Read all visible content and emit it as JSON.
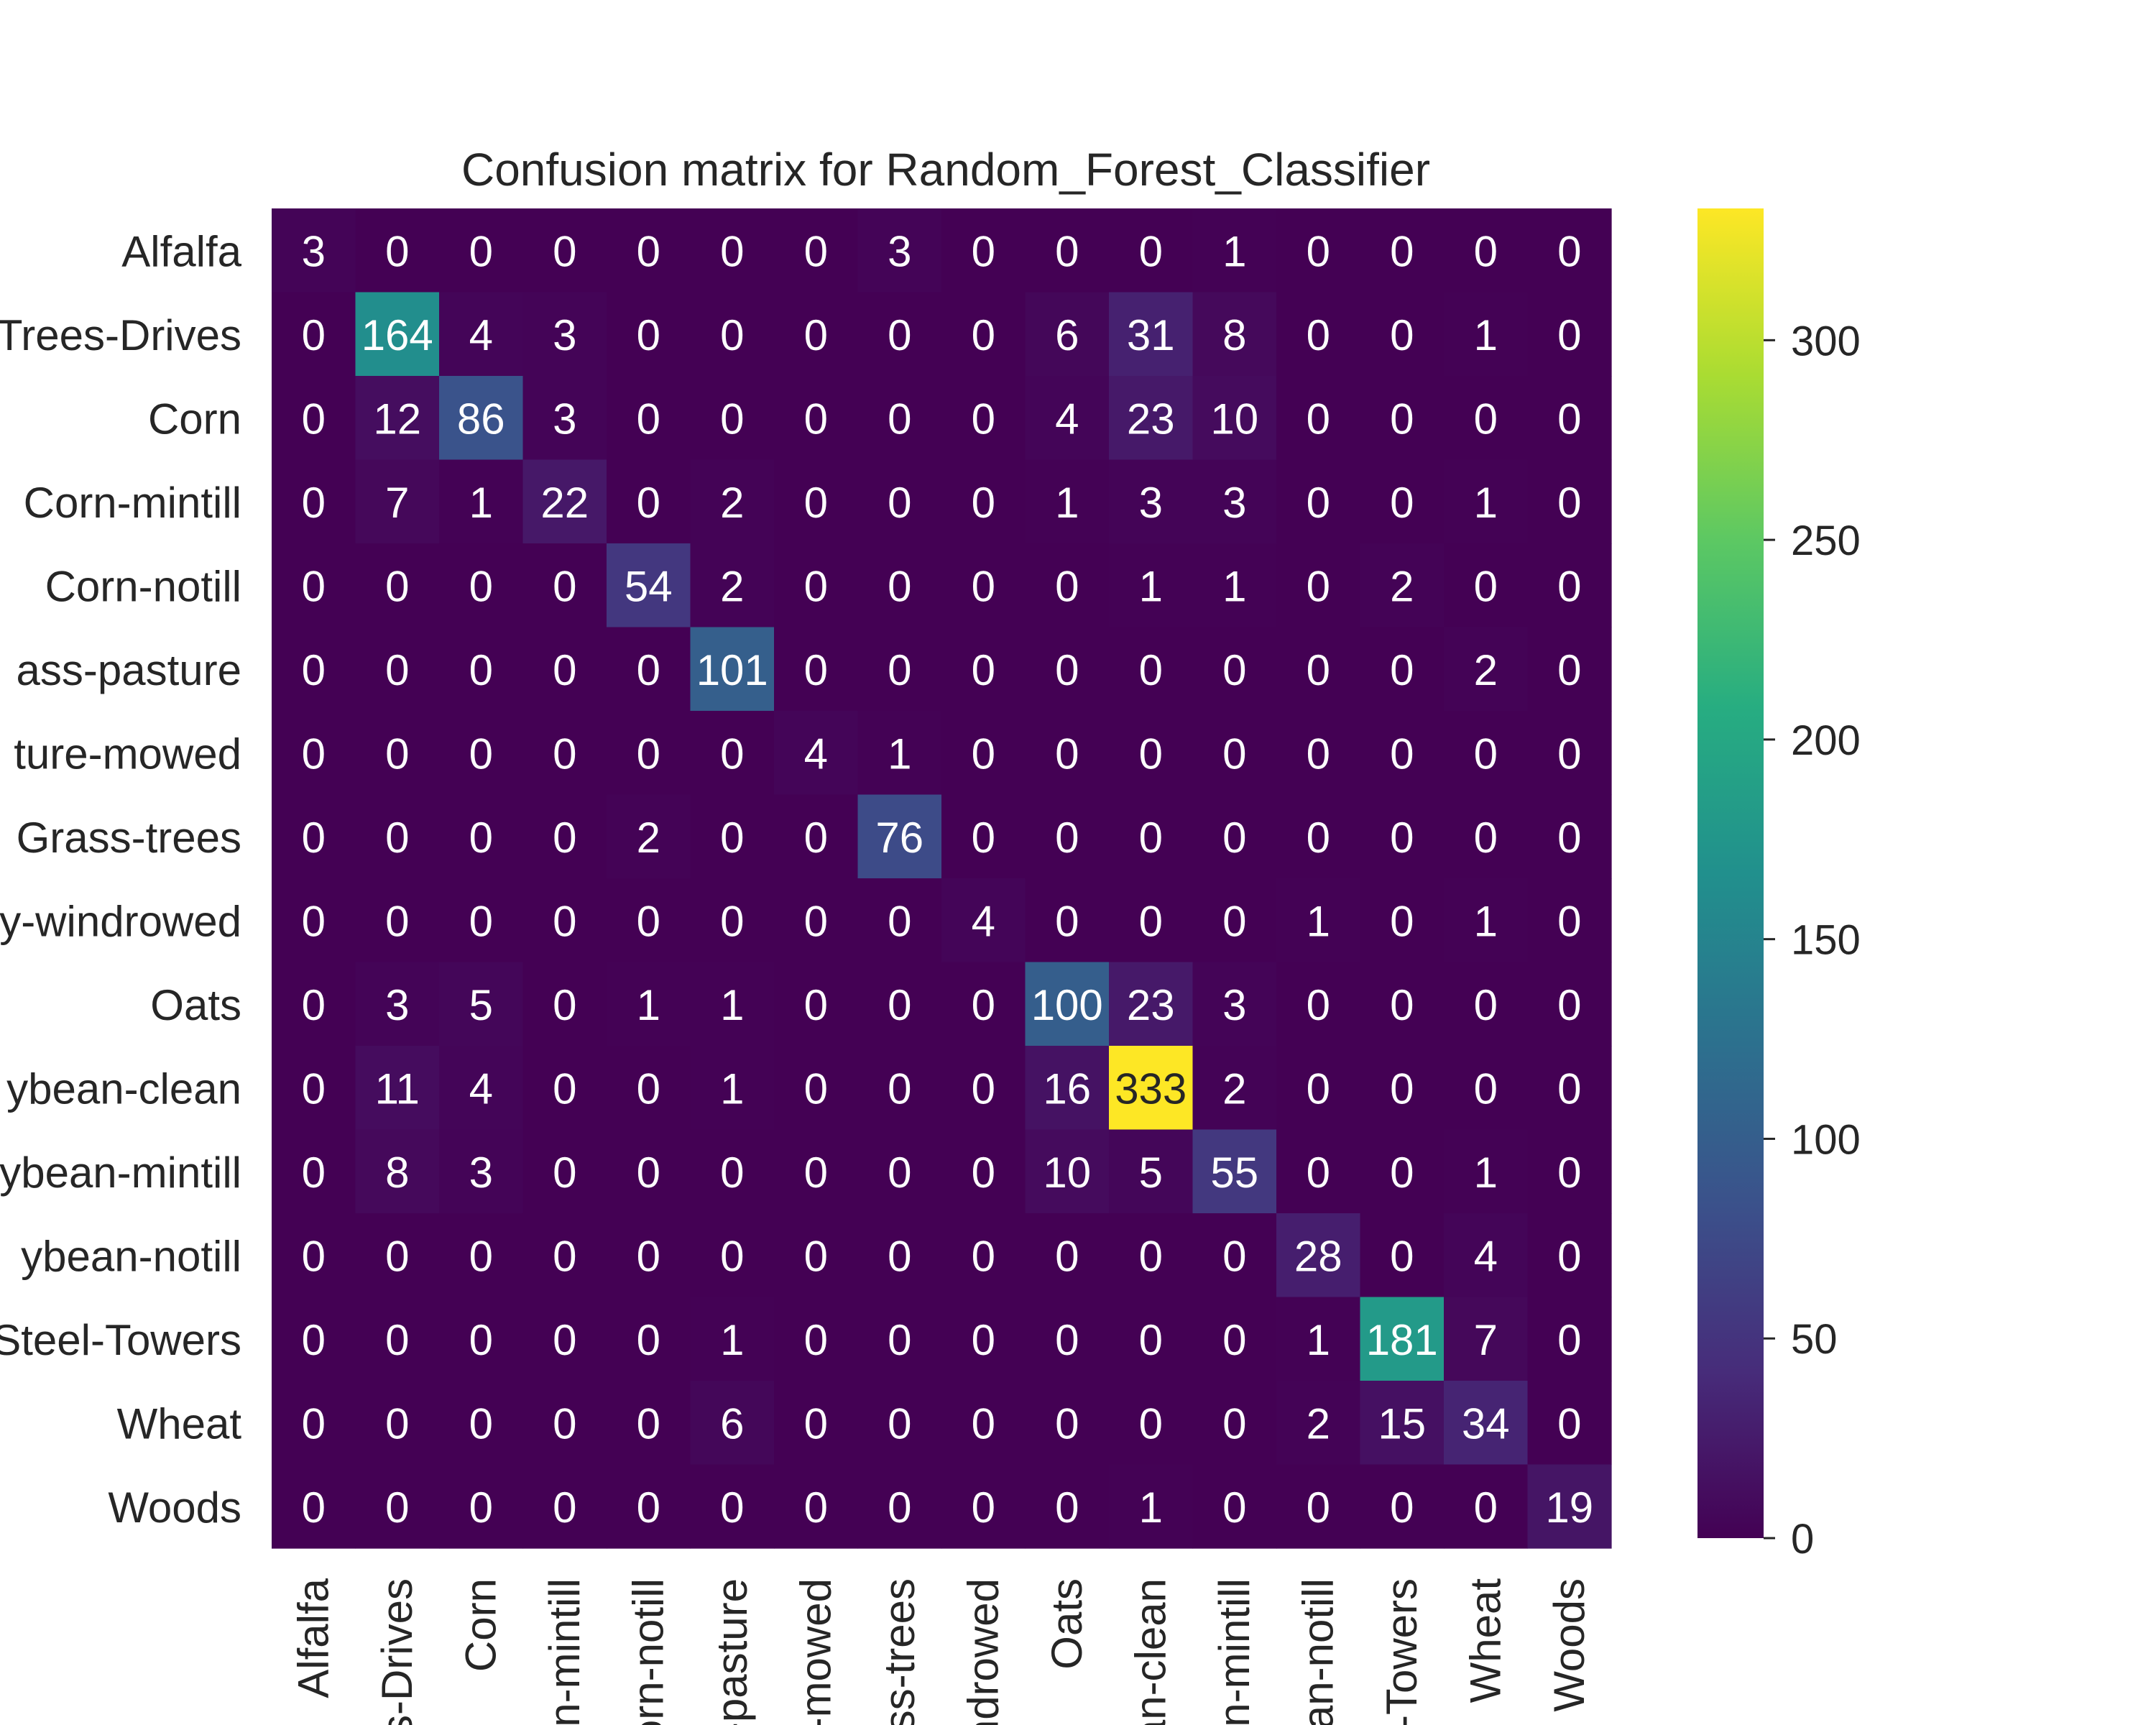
{
  "chart_data": {
    "type": "heatmap",
    "title": "Confusion matrix for Random_Forest_Classifier",
    "xlabel": "",
    "ylabel": "",
    "colormap": "viridis",
    "row_labels": [
      "Alfalfa",
      "Trees-Drives",
      "Corn",
      "Corn-mintill",
      "Corn-notill",
      "ass-pasture",
      "ture-mowed",
      "Grass-trees",
      "y-windrowed",
      "Oats",
      "ybean-clean",
      "ybean-mintill",
      "ybean-notill",
      "Steel-Towers",
      "Wheat",
      "Woods"
    ],
    "col_labels": [
      "Alfalfa",
      "s-Drives",
      "Corn",
      "n-mintill",
      "orn-notill",
      "-pasture",
      "-mowed",
      "ss-trees",
      "ndrowed",
      "Oats",
      "an-clean",
      "n-mintill",
      "an-notill",
      "-Towers",
      "Wheat",
      "Woods"
    ],
    "matrix": [
      [
        3,
        0,
        0,
        0,
        0,
        0,
        0,
        3,
        0,
        0,
        0,
        1,
        0,
        0,
        0,
        0
      ],
      [
        0,
        164,
        4,
        3,
        0,
        0,
        0,
        0,
        0,
        6,
        31,
        8,
        0,
        0,
        1,
        0
      ],
      [
        0,
        12,
        86,
        3,
        0,
        0,
        0,
        0,
        0,
        4,
        23,
        10,
        0,
        0,
        0,
        0
      ],
      [
        0,
        7,
        1,
        22,
        0,
        2,
        0,
        0,
        0,
        1,
        3,
        3,
        0,
        0,
        1,
        0
      ],
      [
        0,
        0,
        0,
        0,
        54,
        2,
        0,
        0,
        0,
        0,
        1,
        1,
        0,
        2,
        0,
        0
      ],
      [
        0,
        0,
        0,
        0,
        0,
        101,
        0,
        0,
        0,
        0,
        0,
        0,
        0,
        0,
        2,
        0
      ],
      [
        0,
        0,
        0,
        0,
        0,
        0,
        4,
        1,
        0,
        0,
        0,
        0,
        0,
        0,
        0,
        0
      ],
      [
        0,
        0,
        0,
        0,
        2,
        0,
        0,
        76,
        0,
        0,
        0,
        0,
        0,
        0,
        0,
        0
      ],
      [
        0,
        0,
        0,
        0,
        0,
        0,
        0,
        0,
        4,
        0,
        0,
        0,
        1,
        0,
        1,
        0
      ],
      [
        0,
        3,
        5,
        0,
        1,
        1,
        0,
        0,
        0,
        100,
        23,
        3,
        0,
        0,
        0,
        0
      ],
      [
        0,
        11,
        4,
        0,
        0,
        1,
        0,
        0,
        0,
        16,
        333,
        2,
        0,
        0,
        0,
        0
      ],
      [
        0,
        8,
        3,
        0,
        0,
        0,
        0,
        0,
        0,
        10,
        5,
        55,
        0,
        0,
        1,
        0
      ],
      [
        0,
        0,
        0,
        0,
        0,
        0,
        0,
        0,
        0,
        0,
        0,
        0,
        28,
        0,
        4,
        0
      ],
      [
        0,
        0,
        0,
        0,
        0,
        1,
        0,
        0,
        0,
        0,
        0,
        0,
        1,
        181,
        7,
        0
      ],
      [
        0,
        0,
        0,
        0,
        0,
        6,
        0,
        0,
        0,
        0,
        0,
        0,
        2,
        15,
        34,
        0
      ],
      [
        0,
        0,
        0,
        0,
        0,
        0,
        0,
        0,
        0,
        0,
        1,
        0,
        0,
        0,
        0,
        19
      ]
    ],
    "colorbar": {
      "range": [
        0,
        333
      ],
      "ticks": [
        0,
        50,
        100,
        150,
        200,
        250,
        300
      ]
    },
    "text_color_light": "#ffffff",
    "text_color_dark": "#262626"
  }
}
